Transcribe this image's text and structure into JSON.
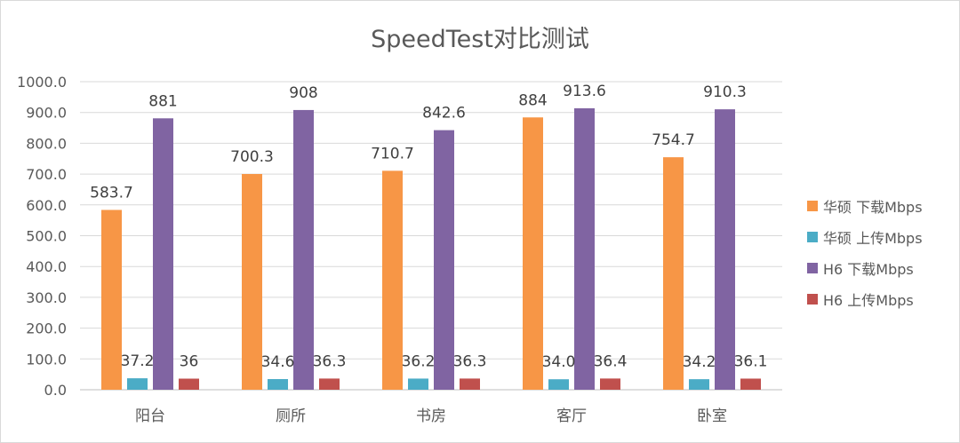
{
  "chart_data": {
    "type": "bar",
    "title": "SpeedTest对比测试",
    "categories": [
      "阳台",
      "厕所",
      "书房",
      "客厅",
      "卧室"
    ],
    "ylim": [
      0,
      1000
    ],
    "ytick_step": 100,
    "ytick_labels": [
      "0.0",
      "100.0",
      "200.0",
      "300.0",
      "400.0",
      "500.0",
      "600.0",
      "700.0",
      "800.0",
      "900.0",
      "1000.0"
    ],
    "grid": true,
    "legend_position": "right",
    "series": [
      {
        "name": "华硕 下载Mbps",
        "color": "#F79646",
        "values": [
          583.7,
          700.3,
          710.7,
          884,
          754.7
        ],
        "labels": [
          "583.7",
          "700.3",
          "710.7",
          "884",
          "754.7"
        ]
      },
      {
        "name": "华硕 上传Mbps",
        "color": "#4BACC6",
        "values": [
          37.2,
          34.6,
          36.2,
          34.0,
          34.2
        ],
        "labels": [
          "37.2",
          "34.6",
          "36.2",
          "34.0",
          "34.2"
        ]
      },
      {
        "name": "H6 下载Mbps",
        "color": "#8064A2",
        "values": [
          881,
          908,
          842.6,
          913.6,
          910.3
        ],
        "labels": [
          "881",
          "908",
          "842.6",
          "913.6",
          "910.3"
        ]
      },
      {
        "name": "H6 上传Mbps",
        "color": "#C0504D",
        "values": [
          36,
          36.3,
          36.3,
          36.4,
          36.1
        ],
        "labels": [
          "36",
          "36.3",
          "36.3",
          "36.4",
          "36.1"
        ]
      }
    ]
  }
}
